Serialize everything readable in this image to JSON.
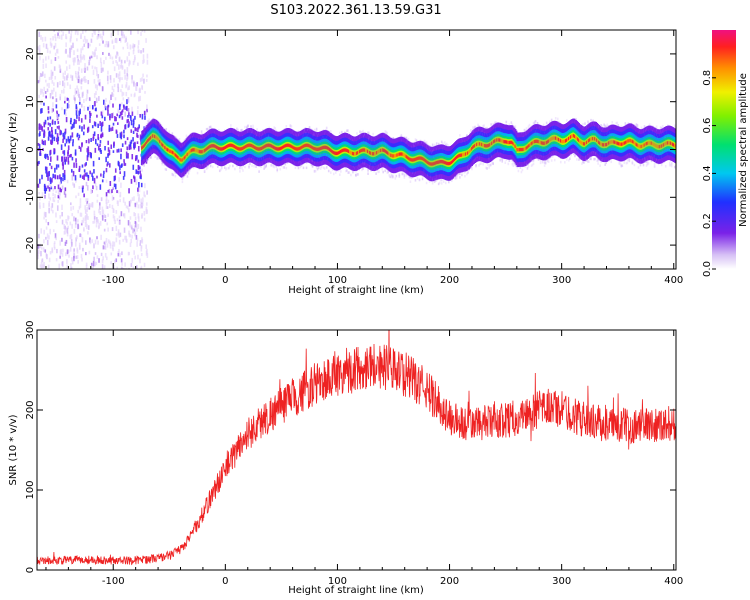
{
  "figure": {
    "title": "S103.2022.361.13.59.G31"
  },
  "chart_data": [
    {
      "type": "heatmap",
      "xlabel": "Height of straight line (km)",
      "ylabel": "Frequency (Hz)",
      "xlim": [
        -168,
        402
      ],
      "ylim": [
        -25,
        25
      ],
      "xticks": [
        -100,
        0,
        100,
        200,
        300,
        400
      ],
      "yticks": [
        -20,
        -10,
        0,
        10,
        20
      ],
      "colorbar": {
        "label": "Normalized spectral amplitude",
        "lim": [
          0,
          1
        ],
        "ticks": [
          "0.0",
          "0.2",
          "0.4",
          "0.6",
          "0.8"
        ]
      },
      "ridge": {
        "x": [
          -168,
          -150,
          -120,
          -90,
          -80,
          -75,
          -70,
          -65,
          -60,
          -55,
          -50,
          -45,
          -40,
          -35,
          -30,
          -20,
          -10,
          0,
          20,
          40,
          60,
          80,
          100,
          120,
          140,
          150,
          160,
          170,
          180,
          190,
          200,
          210,
          220,
          230,
          240,
          250,
          255,
          260,
          270,
          280,
          290,
          300,
          310,
          320,
          330,
          340,
          350,
          360,
          370,
          380,
          390,
          400
        ],
        "y": [
          1,
          1,
          1,
          1,
          -2,
          0.5,
          2,
          2.5,
          2,
          1,
          -0.5,
          -1.5,
          -2,
          -1,
          -0.5,
          0,
          0.5,
          0.5,
          0.5,
          0.5,
          0.5,
          0.5,
          -0.5,
          -0.5,
          -0.5,
          -1,
          -1.5,
          -2,
          -2.5,
          -3,
          -2.5,
          -1.5,
          0.5,
          1,
          1.5,
          2,
          1.5,
          -0.5,
          1,
          1.5,
          2,
          2,
          2.5,
          1.5,
          2,
          1,
          1.5,
          1.5,
          1,
          1,
          1,
          1
        ]
      }
    },
    {
      "type": "line",
      "xlabel": "Height of straight line (km)",
      "ylabel": "SNR (10 * v/v)",
      "xlim": [
        -168,
        402
      ],
      "ylim": [
        0,
        300
      ],
      "xticks": [
        -100,
        0,
        100,
        200,
        300,
        400
      ],
      "yticks": [
        0,
        100,
        200,
        300
      ],
      "series": [
        {
          "color": "#ee2222",
          "x": [
            -168,
            -150,
            -120,
            -100,
            -80,
            -60,
            -50,
            -40,
            -30,
            -20,
            -10,
            0,
            10,
            20,
            40,
            60,
            80,
            100,
            120,
            130,
            140,
            160,
            180,
            200,
            210,
            220,
            240,
            260,
            280,
            290,
            300,
            320,
            340,
            360,
            380,
            402
          ],
          "y": [
            12,
            12,
            13,
            12,
            12,
            15,
            18,
            25,
            45,
            70,
            100,
            125,
            150,
            170,
            195,
            215,
            232,
            245,
            252,
            258,
            255,
            245,
            225,
            190,
            183,
            182,
            185,
            190,
            200,
            205,
            200,
            188,
            182,
            180,
            182,
            183
          ]
        }
      ]
    }
  ]
}
